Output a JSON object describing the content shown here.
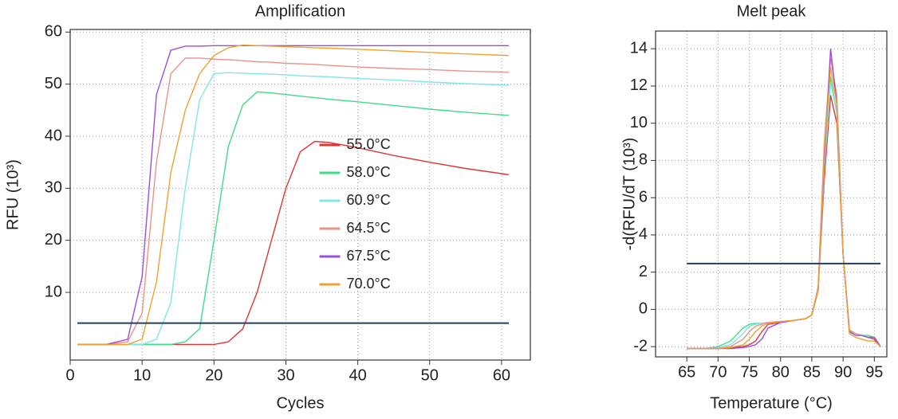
{
  "chart_data": [
    {
      "type": "line",
      "title": "Amplification",
      "xlabel": "Cycles",
      "ylabel": "RFU (10³)",
      "x": [
        1,
        5,
        8,
        10,
        12,
        14,
        16,
        18,
        20,
        22,
        24,
        26,
        28,
        30,
        32,
        34,
        36,
        40,
        45,
        50,
        55,
        61
      ],
      "series": [
        {
          "name": "55.0°C",
          "color": "#e03535",
          "values": [
            0,
            0,
            0,
            0,
            0,
            0,
            0,
            0,
            0,
            0.5,
            3,
            10,
            20,
            30,
            37,
            39,
            38.8,
            37.8,
            36.3,
            35,
            33.8,
            32.6
          ]
        },
        {
          "name": "58.0°C",
          "color": "#3fdc86",
          "values": [
            0,
            0,
            0,
            0,
            0,
            0,
            0.5,
            3,
            20,
            38,
            46,
            48.5,
            48.3,
            48,
            47.7,
            47.4,
            47.1,
            46.6,
            45.9,
            45.2,
            44.6,
            44
          ]
        },
        {
          "name": "60.9°C",
          "color": "#7fe6e6",
          "values": [
            0,
            0,
            0,
            0,
            1,
            8,
            30,
            47,
            52,
            52.2,
            52.1,
            52,
            51.9,
            51.8,
            51.6,
            51.5,
            51.4,
            51.1,
            50.8,
            50.4,
            50.1,
            49.8
          ]
        },
        {
          "name": "64.5°C",
          "color": "#e8938a",
          "values": [
            0,
            0,
            0.5,
            6,
            35,
            52,
            55,
            55,
            54.8,
            54.7,
            54.5,
            54.3,
            54.2,
            54,
            53.9,
            53.8,
            53.6,
            53.3,
            53,
            52.8,
            52.5,
            52.3
          ]
        },
        {
          "name": "67.5°C",
          "color": "#9b4fd6",
          "values": [
            0,
            0,
            1,
            13,
            48,
            56.5,
            57.3,
            57.3,
            57.4,
            57.4,
            57.4,
            57.4,
            57.4,
            57.4,
            57.4,
            57.4,
            57.4,
            57.4,
            57.4,
            57.4,
            57.4,
            57.4
          ]
        },
        {
          "name": "70.0°C",
          "color": "#f0a030",
          "values": [
            0,
            0,
            0,
            1,
            12,
            33,
            45,
            52,
            55.5,
            57,
            57.5,
            57.4,
            57.3,
            57.2,
            57.1,
            57,
            56.9,
            56.7,
            56.4,
            56.1,
            55.8,
            55.5
          ]
        }
      ],
      "threshold": 4.1,
      "threshold_color": "#1f3f5f",
      "xlim": [
        0,
        64
      ],
      "xticks": [
        0,
        10,
        20,
        30,
        40,
        50,
        60
      ],
      "ylim": [
        -3,
        60.5
      ],
      "yticks": [
        10,
        20,
        30,
        40,
        50,
        60
      ],
      "grid": true,
      "legend": "center"
    },
    {
      "type": "line",
      "title": "Melt peak",
      "xlabel": "Temperature (°C)",
      "ylabel": "-d(RFU/dT (10³)",
      "x": [
        65,
        68,
        70,
        72,
        74,
        75,
        76,
        77,
        78,
        80,
        82,
        84,
        85,
        86,
        87,
        88,
        89,
        90,
        91,
        92,
        93,
        94,
        95,
        96
      ],
      "series": [
        {
          "color": "#e03535",
          "values": [
            -2.1,
            -2.1,
            -2.1,
            -2.05,
            -2,
            -1.9,
            -1.7,
            -1.2,
            -0.8,
            -0.7,
            -0.6,
            -0.5,
            -0.3,
            1,
            7,
            11.5,
            10,
            3,
            -1.1,
            -1.3,
            -1.4,
            -1.5,
            -1.6,
            -2
          ]
        },
        {
          "color": "#3fdc86",
          "values": [
            -2.1,
            -2.1,
            -2,
            -1.7,
            -1,
            -0.8,
            -0.75,
            -0.75,
            -0.7,
            -0.65,
            -0.6,
            -0.5,
            -0.3,
            1,
            8,
            12.5,
            10.5,
            3,
            -1.2,
            -1.3,
            -1.4,
            -1.4,
            -1.5,
            -2
          ]
        },
        {
          "color": "#7fe6e6",
          "values": [
            -2.1,
            -2.1,
            -2.05,
            -1.9,
            -1.3,
            -0.9,
            -0.8,
            -0.75,
            -0.7,
            -0.65,
            -0.6,
            -0.5,
            -0.3,
            1,
            7.5,
            12.2,
            10.5,
            3,
            -1.1,
            -1.3,
            -1.4,
            -1.5,
            -1.5,
            -2
          ]
        },
        {
          "color": "#e8938a",
          "values": [
            -2.1,
            -2.1,
            -2.1,
            -2,
            -1.6,
            -1.2,
            -0.9,
            -0.8,
            -0.7,
            -0.65,
            -0.6,
            -0.5,
            -0.3,
            1.2,
            9,
            13.5,
            11.5,
            3,
            -1.1,
            -1.3,
            -1.4,
            -1.5,
            -1.5,
            -2
          ]
        },
        {
          "color": "#9b4fd6",
          "values": [
            -2.1,
            -2.1,
            -2.1,
            -2.1,
            -2.05,
            -2,
            -1.9,
            -1.6,
            -1,
            -0.7,
            -0.6,
            -0.5,
            -0.3,
            1,
            8,
            14,
            11,
            3,
            -1.2,
            -1.4,
            -1.4,
            -1.5,
            -1.5,
            -2
          ]
        },
        {
          "color": "#f0a030",
          "values": [
            -2.1,
            -2.1,
            -2.1,
            -2.05,
            -1.9,
            -1.6,
            -1.2,
            -0.9,
            -0.75,
            -0.65,
            -0.6,
            -0.5,
            -0.3,
            1,
            8.5,
            13,
            11,
            3,
            -1.3,
            -1.5,
            -1.6,
            -1.7,
            -1.7,
            -2
          ]
        }
      ],
      "threshold": 2.46,
      "threshold_color": "#1f3f5f",
      "xlim": [
        60,
        97
      ],
      "xticks": [
        65,
        70,
        75,
        80,
        85,
        90,
        95
      ],
      "ylim": [
        -2.55,
        14.95
      ],
      "yticks": [
        -2,
        0,
        2,
        4,
        6,
        8,
        10,
        12,
        14
      ],
      "grid": true
    }
  ]
}
